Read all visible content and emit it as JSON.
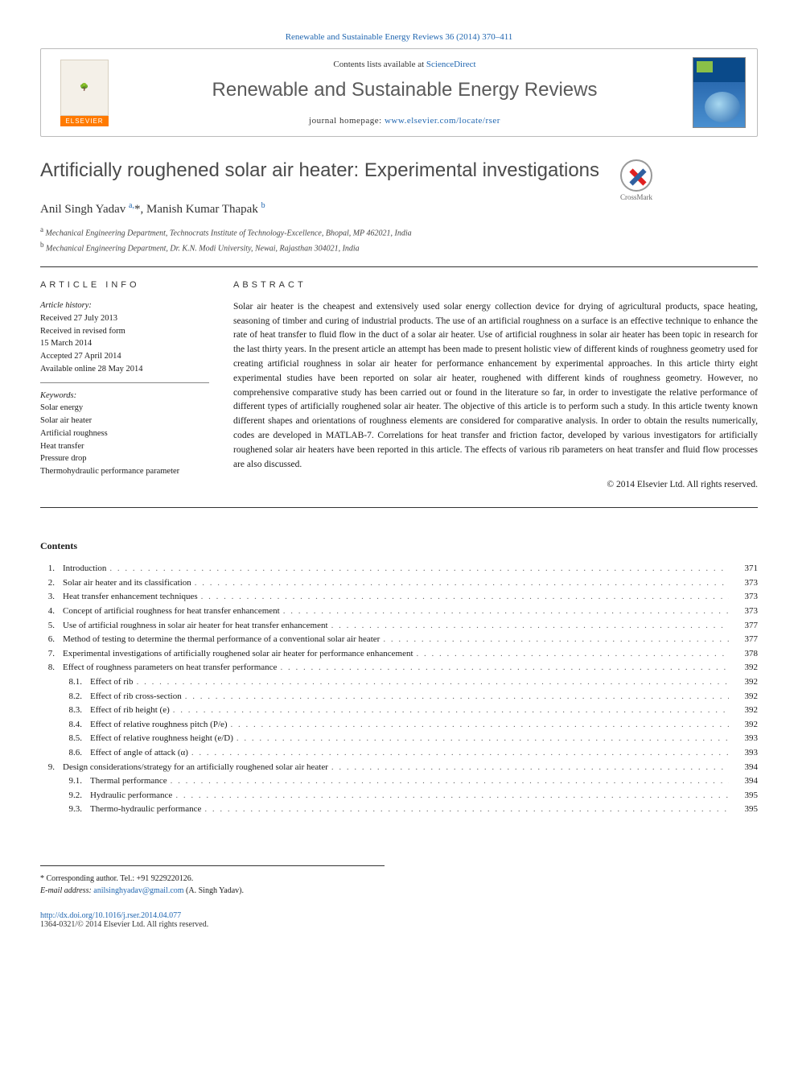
{
  "top_link": "Renewable and Sustainable Energy Reviews 36 (2014) 370–411",
  "header": {
    "contents_available": "Contents lists available at",
    "sciencedirect": "ScienceDirect",
    "journal_title": "Renewable and Sustainable Energy Reviews",
    "homepage_label": "journal homepage:",
    "homepage_url": "www.elsevier.com/locate/rser",
    "publisher": "ELSEVIER"
  },
  "article": {
    "title": "Artificially roughened solar air heater: Experimental investigations",
    "crossmark": "CrossMark",
    "authors_html": "Anil Singh Yadav <sup>a,</sup><span class='star'>*</span>, Manish Kumar Thapak <sup>b</sup>",
    "affiliations": [
      {
        "sup": "a",
        "text": "Mechanical Engineering Department, Technocrats Institute of Technology-Excellence, Bhopal, MP 462021, India"
      },
      {
        "sup": "b",
        "text": "Mechanical Engineering Department, Dr. K.N. Modi University, Newai, Rajasthan 304021, India"
      }
    ]
  },
  "info": {
    "heading": "ARTICLE INFO",
    "history_label": "Article history:",
    "history": [
      "Received 27 July 2013",
      "Received in revised form",
      "15 March 2014",
      "Accepted 27 April 2014",
      "Available online 28 May 2014"
    ],
    "keywords_label": "Keywords:",
    "keywords": [
      "Solar energy",
      "Solar air heater",
      "Artificial roughness",
      "Heat transfer",
      "Pressure drop",
      "Thermohydraulic performance parameter"
    ]
  },
  "abstract": {
    "heading": "ABSTRACT",
    "text": "Solar air heater is the cheapest and extensively used solar energy collection device for drying of agricultural products, space heating, seasoning of timber and curing of industrial products. The use of an artificial roughness on a surface is an effective technique to enhance the rate of heat transfer to fluid flow in the duct of a solar air heater. Use of artificial roughness in solar air heater has been topic in research for the last thirty years. In the present article an attempt has been made to present holistic view of different kinds of roughness geometry used for creating artificial roughness in solar air heater for performance enhancement by experimental approaches. In this article thirty eight experimental studies have been reported on solar air heater, roughened with different kinds of roughness geometry. However, no comprehensive comparative study has been carried out or found in the literature so far, in order to investigate the relative performance of different types of artificially roughened solar air heater. The objective of this article is to perform such a study. In this article twenty known different shapes and orientations of roughness elements are considered for comparative analysis. In order to obtain the results numerically, codes are developed in MATLAB-7. Correlations for heat transfer and friction factor, developed by various investigators for artificially roughened solar air heaters have been reported in this article. The effects of various rib parameters on heat transfer and fluid flow processes are also discussed.",
    "copyright": "© 2014 Elsevier Ltd. All rights reserved."
  },
  "contents": {
    "heading": "Contents",
    "items": [
      {
        "num": "1.",
        "label": "Introduction",
        "page": "371",
        "sub": false
      },
      {
        "num": "2.",
        "label": "Solar air heater and its classification",
        "page": "373",
        "sub": false
      },
      {
        "num": "3.",
        "label": "Heat transfer enhancement techniques",
        "page": "373",
        "sub": false
      },
      {
        "num": "4.",
        "label": "Concept of artificial roughness for heat transfer enhancement",
        "page": "373",
        "sub": false
      },
      {
        "num": "5.",
        "label": "Use of artificial roughness in solar air heater for heat transfer enhancement",
        "page": "377",
        "sub": false
      },
      {
        "num": "6.",
        "label": "Method of testing to determine the thermal performance of a conventional solar air heater",
        "page": "377",
        "sub": false
      },
      {
        "num": "7.",
        "label": "Experimental investigations of artificially roughened solar air heater for performance enhancement",
        "page": "378",
        "sub": false
      },
      {
        "num": "8.",
        "label": "Effect of roughness parameters on heat transfer performance",
        "page": "392",
        "sub": false
      },
      {
        "num": "8.1.",
        "label": "Effect of rib",
        "page": "392",
        "sub": true
      },
      {
        "num": "8.2.",
        "label": "Effect of rib cross-section",
        "page": "392",
        "sub": true
      },
      {
        "num": "8.3.",
        "label": "Effect of rib height (e)",
        "page": "392",
        "sub": true
      },
      {
        "num": "8.4.",
        "label": "Effect of relative roughness pitch (P/e)",
        "page": "392",
        "sub": true
      },
      {
        "num": "8.5.",
        "label": "Effect of relative roughness height (e/D)",
        "page": "393",
        "sub": true
      },
      {
        "num": "8.6.",
        "label": "Effect of angle of attack (α)",
        "page": "393",
        "sub": true
      },
      {
        "num": "9.",
        "label": "Design considerations/strategy for an artificially roughened solar air heater",
        "page": "394",
        "sub": false
      },
      {
        "num": "9.1.",
        "label": "Thermal performance",
        "page": "394",
        "sub": true
      },
      {
        "num": "9.2.",
        "label": "Hydraulic performance",
        "page": "395",
        "sub": true
      },
      {
        "num": "9.3.",
        "label": "Thermo-hydraulic performance",
        "page": "395",
        "sub": true
      }
    ]
  },
  "footer": {
    "corresponding": "* Corresponding author. Tel.: +91 9229220126.",
    "email_label": "E-mail address:",
    "email": "anilsinghyadav@gmail.com",
    "email_attrib": "(A. Singh Yadav).",
    "doi": "http://dx.doi.org/10.1016/j.rser.2014.04.077",
    "issn_line": "1364-0321/© 2014 Elsevier Ltd. All rights reserved."
  },
  "colors": {
    "link": "#2066b0",
    "text": "#1a1a1a",
    "heading_gray": "#5a5a5a",
    "elsevier_orange": "#ff7a00"
  }
}
